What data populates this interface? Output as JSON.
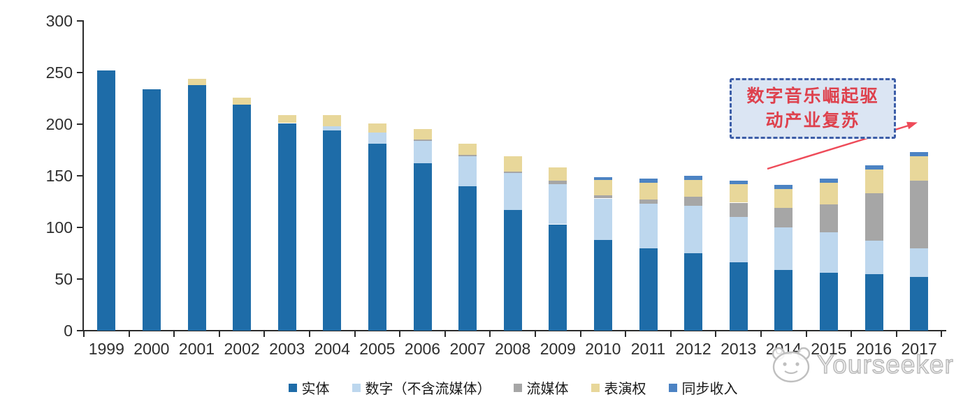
{
  "chart_data": {
    "type": "bar",
    "variant": "stacked",
    "title": "",
    "xlabel": "",
    "ylabel": "",
    "ylim": [
      0,
      300
    ],
    "yticks": [
      0,
      50,
      100,
      150,
      200,
      250,
      300
    ],
    "grid": false,
    "legend_position": "bottom",
    "background": "#ffffff",
    "axis_color": "#2b2b2b",
    "categories": [
      "1999",
      "2000",
      "2001",
      "2002",
      "2003",
      "2004",
      "2005",
      "2006",
      "2007",
      "2008",
      "2009",
      "2010",
      "2011",
      "2012",
      "2013",
      "2014",
      "2015",
      "2016",
      "2017"
    ],
    "series": [
      {
        "name": "实体",
        "color": "#1e6ca8",
        "values": [
          252,
          234,
          238,
          219,
          201,
          194,
          181,
          162,
          140,
          117,
          103,
          88,
          80,
          75,
          66,
          59,
          56,
          55,
          52
        ]
      },
      {
        "name": "数字（不含流媒体）",
        "color": "#bdd7ee",
        "values": [
          0,
          0,
          0,
          0,
          0,
          4,
          11,
          22,
          29,
          36,
          39,
          40,
          43,
          46,
          44,
          41,
          39,
          32,
          28
        ]
      },
      {
        "name": "流媒体",
        "color": "#a6a6a6",
        "values": [
          0,
          0,
          0,
          0,
          0,
          0,
          0,
          1,
          1,
          1,
          3,
          3,
          4,
          9,
          14,
          19,
          27,
          46,
          65
        ]
      },
      {
        "name": "表演权",
        "color": "#e8d79a",
        "values": [
          0,
          0,
          6,
          7,
          8,
          11,
          9,
          10,
          11,
          15,
          13,
          15,
          16,
          16,
          18,
          18,
          21,
          23,
          24
        ]
      },
      {
        "name": "同步收入",
        "color": "#4c83c3",
        "values": [
          0,
          0,
          0,
          0,
          0,
          0,
          0,
          0,
          0,
          0,
          0,
          3,
          4,
          4,
          3,
          4,
          4,
          4,
          4
        ]
      }
    ]
  },
  "annotation": {
    "line1": "数字音乐崛起驱",
    "line2": "动产业复苏",
    "text_color": "#de414d",
    "box_fill": "#dbe5f3",
    "box_border": "#3d5ea8",
    "arrow_color": "#ee4b59"
  },
  "watermark": {
    "text": "Yourseeker",
    "color": "#b5b5b5",
    "logo_icon": "mascot-face-icon"
  }
}
